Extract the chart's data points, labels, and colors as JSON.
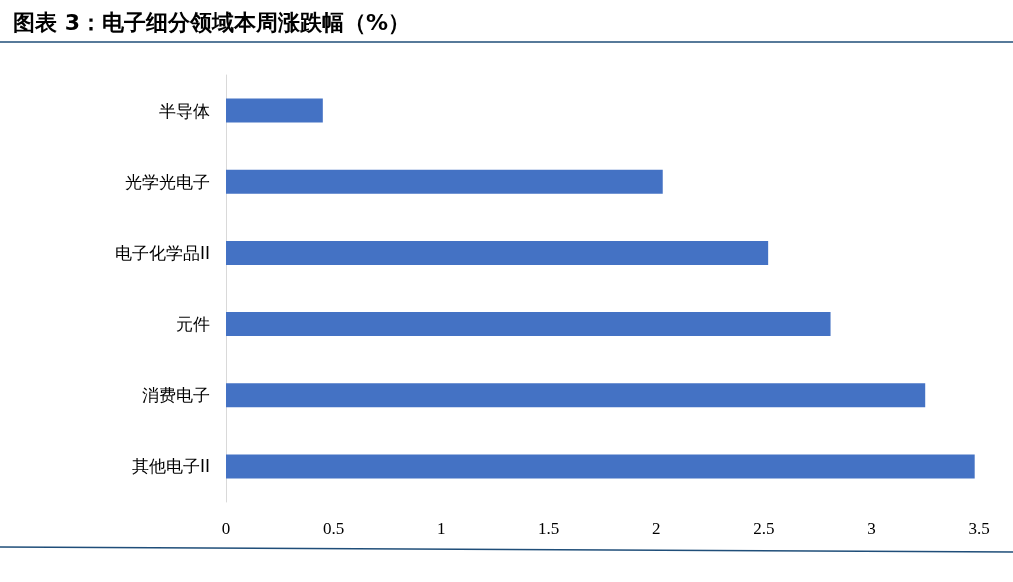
{
  "chart_data": {
    "type": "bar",
    "orientation": "horizontal",
    "title": "图表 3：电子细分领域本周涨跌幅（%）",
    "categories": [
      "半导体",
      "光学光电子",
      "电子化学品II",
      "元件",
      "消费电子",
      "其他电子II"
    ],
    "values": [
      0.45,
      2.03,
      2.52,
      2.81,
      3.25,
      3.48
    ],
    "color": "#4472c4",
    "xlim": [
      0,
      3.5
    ],
    "xticks": [
      0,
      0.5,
      1,
      1.5,
      2,
      2.5,
      3,
      3.5
    ],
    "grid": false
  }
}
